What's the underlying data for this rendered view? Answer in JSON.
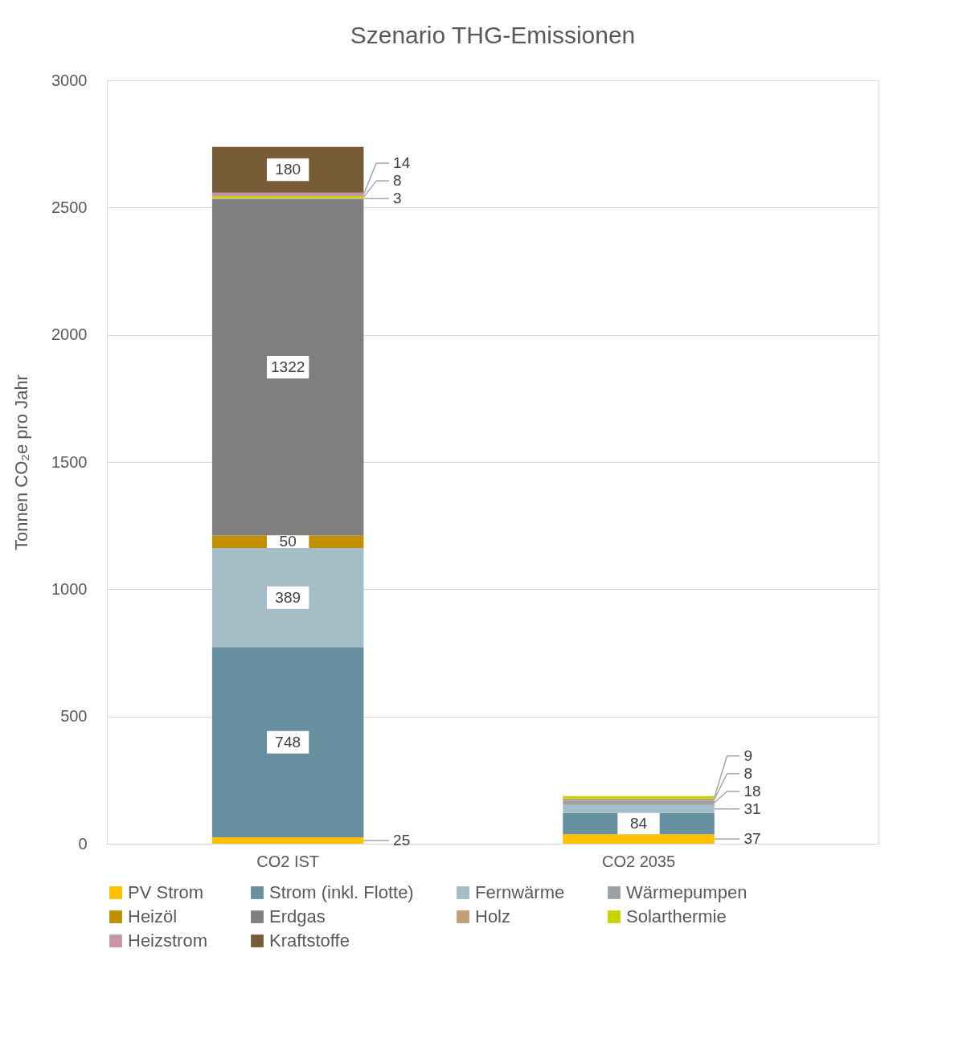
{
  "chart_data": {
    "type": "bar",
    "stacked": true,
    "title": "Szenario THG-Emissionen",
    "ylabel": "Tonnen CO₂e pro Jahr",
    "categories": [
      "CO2 IST",
      "CO2 2035"
    ],
    "series": [
      {
        "name": "PV Strom",
        "color": "#ffc000",
        "values": [
          25,
          37
        ]
      },
      {
        "name": "Strom (inkl. Flotte)",
        "color": "#668f9f",
        "values": [
          748,
          84
        ]
      },
      {
        "name": "Fernwärme",
        "color": "#a5bdc6",
        "values": [
          389,
          31
        ]
      },
      {
        "name": "Wärmepumpen",
        "color": "#9aa0a3",
        "values": [
          null,
          18
        ]
      },
      {
        "name": "Heizöl",
        "color": "#c09000",
        "values": [
          50,
          null
        ]
      },
      {
        "name": "Erdgas",
        "color": "#7f7f7f",
        "values": [
          1322,
          null
        ]
      },
      {
        "name": "Holz",
        "color": "#bf9f77",
        "values": [
          3,
          8
        ]
      },
      {
        "name": "Solarthermie",
        "color": "#c8d400",
        "values": [
          8,
          9
        ]
      },
      {
        "name": "Heizstrom",
        "color": "#c994a8",
        "values": [
          14,
          null
        ]
      },
      {
        "name": "Kraftstoffe",
        "color": "#765c37",
        "values": [
          180,
          null
        ]
      }
    ],
    "ylim": [
      0,
      3000
    ],
    "yticks": [
      0,
      500,
      {
        "value": 1000,
        "label": "1000"
      },
      {
        "value": 1500,
        "label": "1500"
      },
      {
        "value": 2000,
        "label": "2000"
      },
      {
        "value": 2500,
        "label": "2500"
      },
      {
        "value": 3000,
        "label": "3000"
      }
    ],
    "grid": "y",
    "legend": "bottom",
    "data_labels": true
  }
}
